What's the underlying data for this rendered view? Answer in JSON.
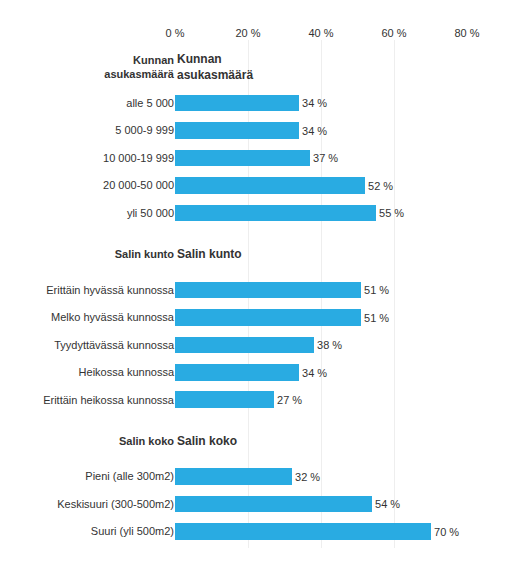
{
  "chart_data": {
    "type": "bar",
    "orientation": "horizontal",
    "color": "#29ABE2",
    "data_labels": true,
    "grid": true,
    "xlim": [
      0,
      80
    ],
    "xticks": [
      {
        "value": 0,
        "label": "0 %"
      },
      {
        "value": 20,
        "label": "20 %"
      },
      {
        "value": 40,
        "label": "40 %"
      },
      {
        "value": 60,
        "label": "60 %"
      },
      {
        "value": 80,
        "label": "80 %"
      }
    ],
    "sections": [
      {
        "header": "Kunnan\nasukasmäärä",
        "categories": [
          "alle 5 000",
          "5 000-9 999",
          "10 000-19 999",
          "20 000-50 000",
          "yli 50 000"
        ],
        "values": [
          34,
          34,
          37,
          52,
          55
        ],
        "value_labels": [
          "34 %",
          "34 %",
          "37 %",
          "52 %",
          "55 %"
        ]
      },
      {
        "header": "Salin kunto",
        "categories": [
          "Erittäin hyvässä kunnossa",
          "Melko hyvässä kunnossa",
          "Tyydyttävässä kunnossa",
          "Heikossa kunnossa",
          "Erittäin heikossa kunnossa"
        ],
        "values": [
          51,
          51,
          38,
          34,
          27
        ],
        "value_labels": [
          "51 %",
          "51 %",
          "38 %",
          "34 %",
          "27 %"
        ]
      },
      {
        "header": "Salin koko",
        "categories": [
          "Pieni (alle 300m2)",
          "Keskisuuri (300-500m2)",
          "Suuri (yli 500m2)"
        ],
        "values": [
          32,
          54,
          70
        ],
        "value_labels": [
          "32 %",
          "54 %",
          "70 %"
        ]
      }
    ]
  }
}
